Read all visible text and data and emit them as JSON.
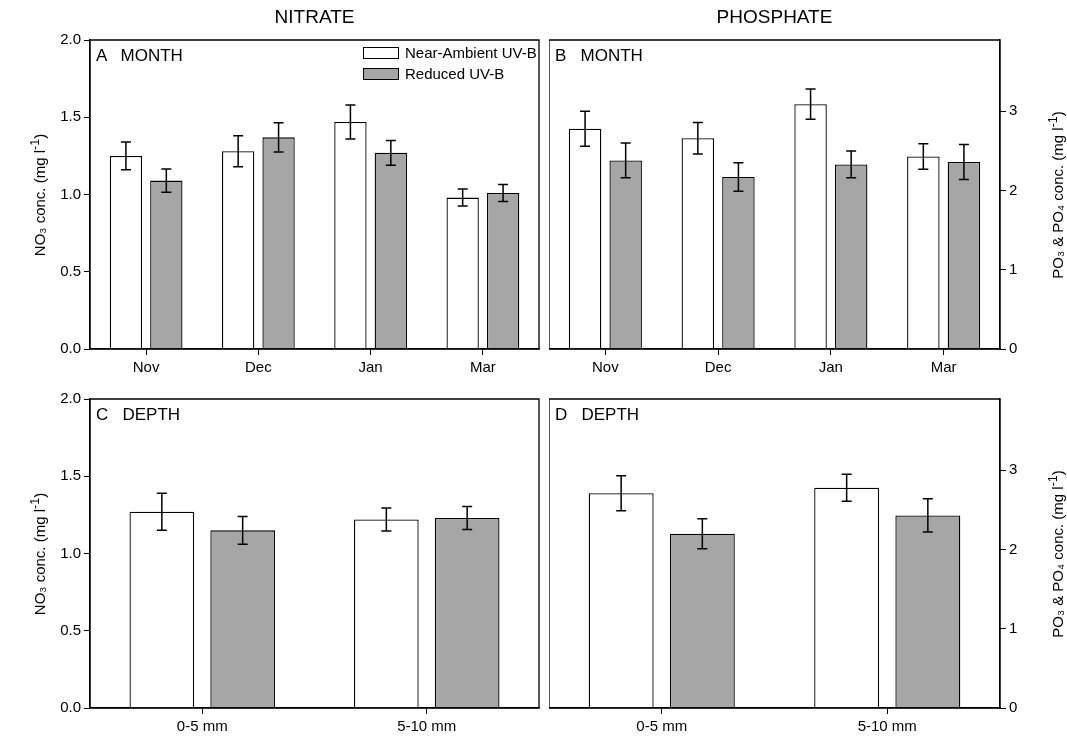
{
  "chart_data": [
    {
      "type": "bar",
      "title": "NITRATE",
      "ylabel": "NO₃ conc. (mg l$^{-1}$)",
      "annotations": [
        "A   MONTH"
      ],
      "categories": [
        "Nov",
        "Dec",
        "Jan",
        "Mar"
      ],
      "ylim": [
        0,
        2
      ],
      "yticks": [
        {
          "value": 0,
          "label": "0.0"
        },
        {
          "value": 0.5,
          "label": "0.5"
        },
        {
          "value": 1,
          "label": "1.0"
        },
        {
          "value": 1.5,
          "label": "1.5"
        },
        {
          "value": 2,
          "label": "2.0"
        }
      ],
      "grid": false,
      "legend": "top right",
      "series": [
        {
          "name": "Near-Ambient UV-B",
          "color": "#ffffff",
          "values": [
            1.25,
            1.28,
            1.47,
            0.98
          ],
          "errors": [
            0.09,
            0.1,
            0.11,
            0.055
          ]
        },
        {
          "name": "Reduced UV-B",
          "color": "#a6a6a6",
          "values": [
            1.09,
            1.37,
            1.27,
            1.01
          ],
          "errors": [
            0.075,
            0.095,
            0.08,
            0.055
          ]
        }
      ]
    },
    {
      "type": "bar",
      "title": "PHOSPHATE",
      "y2label": "PO₃ & PO₄ conc. (mg l$^{-1}$)",
      "annotations": [
        "B   MONTH"
      ],
      "categories": [
        "Nov",
        "Dec",
        "Jan",
        "Mar"
      ],
      "y2lim": [
        0,
        3.9
      ],
      "y2ticks": [
        0,
        1,
        2,
        3
      ],
      "grid": false,
      "series": [
        {
          "axis": "y2",
          "color": "#ffffff",
          "values": [
            2.78,
            2.66,
            3.09,
            2.43
          ],
          "errors": [
            0.22,
            0.2,
            0.19,
            0.16
          ]
        },
        {
          "axis": "y2",
          "color": "#a6a6a6",
          "values": [
            2.38,
            2.17,
            2.33,
            2.36
          ],
          "errors": [
            0.22,
            0.18,
            0.17,
            0.22
          ]
        }
      ]
    },
    {
      "type": "bar",
      "ylabel": "NO₃ conc. (mg l$^{-1}$)",
      "annotations": [
        "C   DEPTH"
      ],
      "categories": [
        "0-5 mm",
        "5-10 mm"
      ],
      "ylim": [
        0,
        2
      ],
      "yticks": [
        {
          "value": 0,
          "label": "0.0"
        },
        {
          "value": 0.5,
          "label": "0.5"
        },
        {
          "value": 1,
          "label": "1.0"
        },
        {
          "value": 1.5,
          "label": "1.5"
        },
        {
          "value": 2,
          "label": "2.0"
        }
      ],
      "grid": false,
      "series": [
        {
          "color": "#ffffff",
          "values": [
            1.27,
            1.22
          ],
          "errors": [
            0.12,
            0.075
          ]
        },
        {
          "color": "#a6a6a6",
          "values": [
            1.15,
            1.23
          ],
          "errors": [
            0.09,
            0.075
          ]
        }
      ]
    },
    {
      "type": "bar",
      "y2label": "PO₃ & PO₄ conc. (mg l$^{-1}$)",
      "annotations": [
        "D   DEPTH"
      ],
      "categories": [
        "0-5 mm",
        "5-10 mm"
      ],
      "y2lim": [
        0,
        3.9
      ],
      "y2ticks": [
        0,
        1,
        2,
        3
      ],
      "grid": false,
      "series": [
        {
          "axis": "y2",
          "color": "#ffffff",
          "values": [
            2.71,
            2.78
          ],
          "errors": [
            0.22,
            0.17
          ]
        },
        {
          "axis": "y2",
          "color": "#a6a6a6",
          "values": [
            2.2,
            2.43
          ],
          "errors": [
            0.19,
            0.21
          ]
        }
      ]
    }
  ]
}
